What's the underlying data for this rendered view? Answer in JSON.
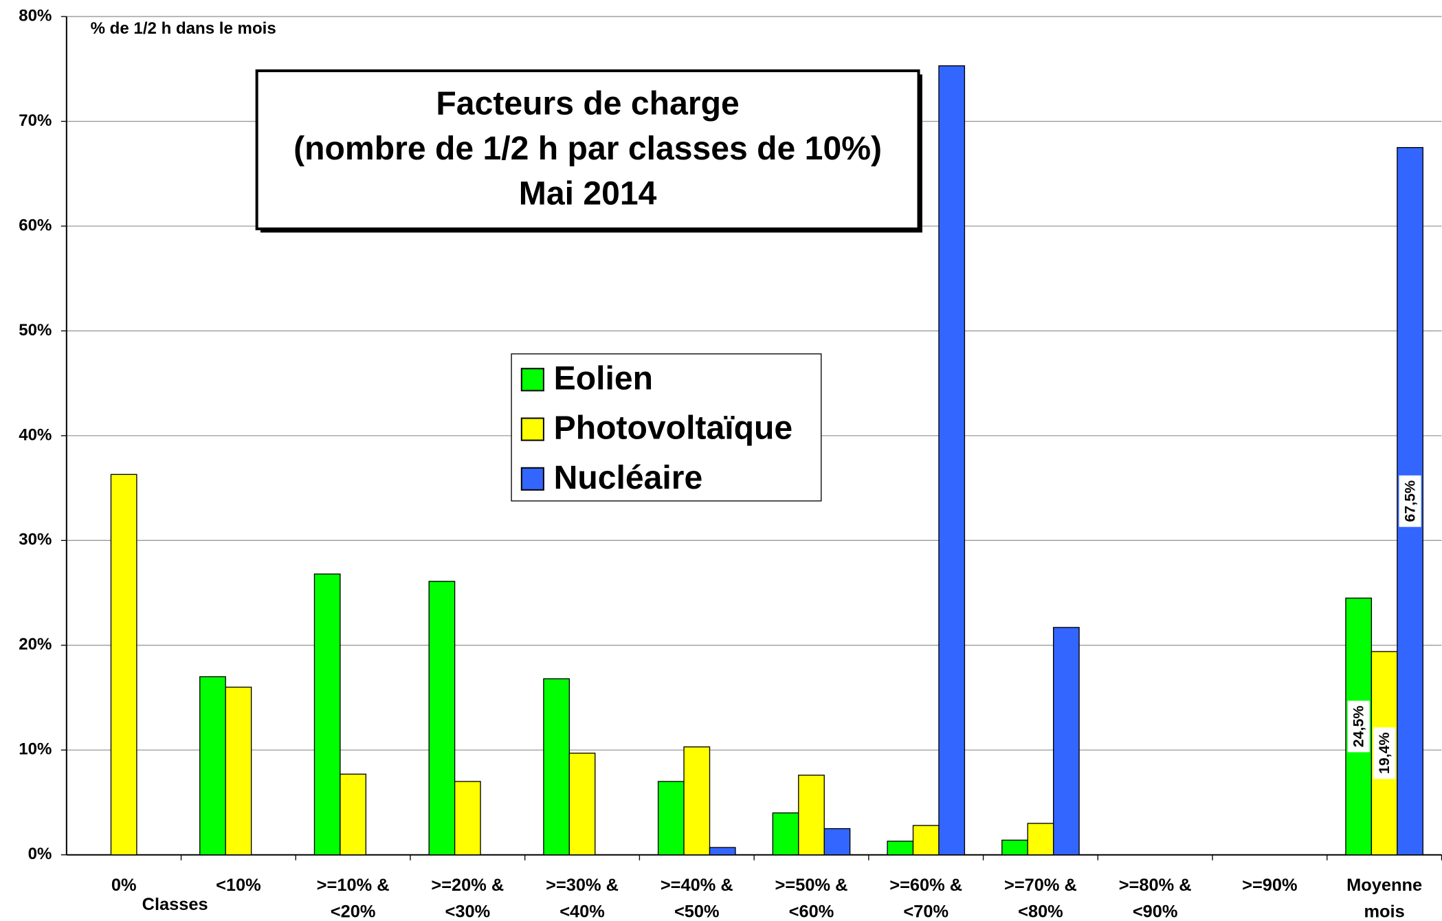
{
  "chart_data": {
    "type": "bar",
    "title": [
      "Facteurs de charge",
      "(nombre de 1/2 h par classes de 10%)",
      "Mai 2014"
    ],
    "y_label": "% de 1/2 h dans le mois",
    "x_label": "Classes",
    "categories": [
      [
        "0%"
      ],
      [
        "<10%"
      ],
      [
        ">=10% &",
        "<20%"
      ],
      [
        ">=20% &",
        "<30%"
      ],
      [
        ">=30% &",
        "<40%"
      ],
      [
        ">=40% &",
        "<50%"
      ],
      [
        ">=50% &",
        "<60%"
      ],
      [
        ">=60% &",
        "<70%"
      ],
      [
        ">=70% &",
        "<80%"
      ],
      [
        ">=80% &",
        "<90%"
      ],
      [
        ">=90%"
      ],
      [
        "Moyenne",
        "mois"
      ]
    ],
    "series": [
      {
        "name": "Eolien",
        "color": "#00ff00",
        "values": [
          0,
          17.0,
          26.8,
          26.1,
          16.8,
          7.0,
          4.0,
          1.3,
          1.4,
          0,
          0,
          24.5
        ],
        "value_labels": [
          null,
          null,
          null,
          null,
          null,
          null,
          null,
          null,
          null,
          null,
          null,
          "24,5%"
        ]
      },
      {
        "name": "Photovoltaïque",
        "color": "#ffff00",
        "values": [
          36.3,
          16.0,
          7.7,
          7.0,
          9.7,
          10.3,
          7.6,
          2.8,
          3.0,
          0,
          0,
          19.4
        ],
        "value_labels": [
          null,
          null,
          null,
          null,
          null,
          null,
          null,
          null,
          null,
          null,
          null,
          "19,4%"
        ]
      },
      {
        "name": "Nucléaire",
        "color": "#3366ff",
        "values": [
          0,
          0,
          0,
          0,
          0,
          0.7,
          2.5,
          75.3,
          21.7,
          0,
          0,
          67.5
        ],
        "value_labels": [
          null,
          null,
          null,
          null,
          null,
          null,
          null,
          null,
          null,
          null,
          null,
          "67,5%"
        ]
      }
    ],
    "ylim": [
      0,
      80
    ],
    "yticks": [
      {
        "value": 0,
        "label": "0%"
      },
      {
        "value": 10,
        "label": "10%"
      },
      {
        "value": 20,
        "label": "20%"
      },
      {
        "value": 30,
        "label": "30%"
      },
      {
        "value": 40,
        "label": "40%"
      },
      {
        "value": 50,
        "label": "50%"
      },
      {
        "value": 60,
        "label": "60%"
      },
      {
        "value": 70,
        "label": "70%"
      },
      {
        "value": 80,
        "label": "80%"
      }
    ],
    "grid": true,
    "legend": "center"
  }
}
